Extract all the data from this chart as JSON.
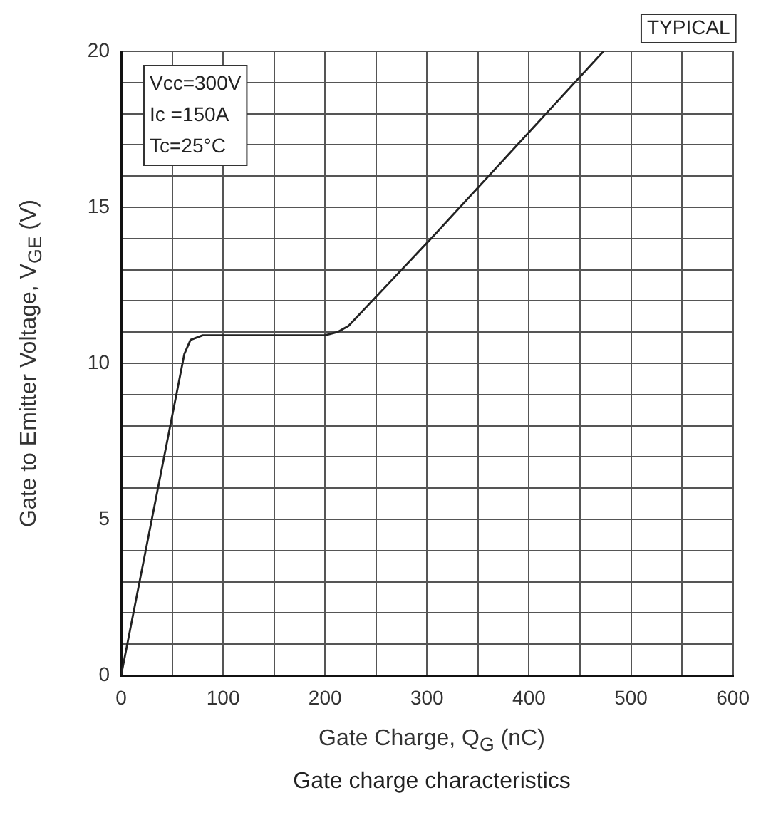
{
  "chart_data": {
    "type": "line",
    "title": "Gate charge characteristics",
    "xlabel": "Gate Charge, Q$_{G}$ (nC)",
    "ylabel": "Gate to Emitter Voltage, V$_{GE}$ (V)",
    "annotations": [
      "TYPICAL",
      "Vcc=300V",
      "Ic =150A",
      "Tc=25°C"
    ],
    "x": [
      0,
      62,
      68,
      80,
      200,
      212,
      223,
      304,
      473
    ],
    "series": [
      {
        "color": "#222222",
        "values": [
          0,
          10.3,
          10.75,
          10.9,
          10.9,
          11.0,
          11.2,
          14,
          20
        ]
      }
    ],
    "xlim": [
      0,
      600
    ],
    "ylim": [
      0,
      20
    ],
    "xticks": [
      0,
      {
        "value": 50,
        "label": null
      },
      100,
      {
        "value": 150,
        "label": null
      },
      200,
      {
        "value": 250,
        "label": null
      },
      300,
      {
        "value": 350,
        "label": null
      },
      400,
      {
        "value": 450,
        "label": null
      },
      500,
      {
        "value": 550,
        "label": null
      },
      600
    ],
    "yticks": [
      0,
      {
        "value": 1,
        "label": null
      },
      {
        "value": 2,
        "label": null
      },
      {
        "value": 3,
        "label": null
      },
      {
        "value": 4,
        "label": null
      },
      5,
      {
        "value": 6,
        "label": null
      },
      {
        "value": 7,
        "label": null
      },
      {
        "value": 8,
        "label": null
      },
      {
        "value": 9,
        "label": null
      },
      10,
      {
        "value": 11,
        "label": null
      },
      {
        "value": 12,
        "label": null
      },
      {
        "value": 13,
        "label": null
      },
      {
        "value": 14,
        "label": null
      },
      15,
      {
        "value": 16,
        "label": null
      },
      {
        "value": 17,
        "label": null
      },
      {
        "value": 18,
        "label": null
      },
      {
        "value": 19,
        "label": null
      },
      20
    ],
    "grid": true,
    "legend": false,
    "marker": "none",
    "line_style": "solid"
  }
}
